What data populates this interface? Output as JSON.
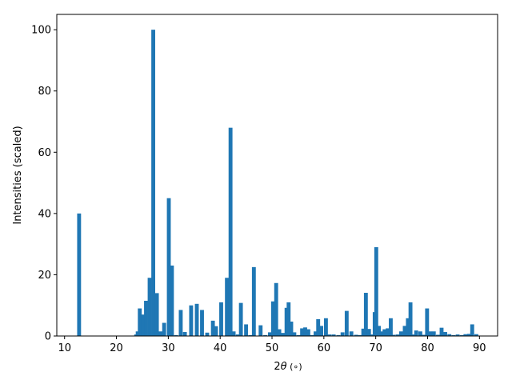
{
  "chart_data": {
    "type": "bar",
    "xlabel_prefix": "2",
    "xlabel_theta": "θ",
    "xlabel_unit": " (∘)",
    "ylabel": "Intensities (scaled)",
    "xlim": [
      8.5,
      93.5
    ],
    "ylim": [
      0,
      105
    ],
    "xticks": [
      10,
      20,
      30,
      40,
      50,
      60,
      70,
      80,
      90
    ],
    "yticks": [
      0,
      20,
      40,
      60,
      80,
      100
    ],
    "grid": false,
    "bar_color": "#1f77b4",
    "bar_width": 0.75,
    "x": [
      12.8,
      23.8,
      24.1,
      24.5,
      25.1,
      25.7,
      26.4,
      27.1,
      27.8,
      28.5,
      29.2,
      30.1,
      30.7,
      31.5,
      32.4,
      33.2,
      34.4,
      35.5,
      36.5,
      37.5,
      38.6,
      39.2,
      40.2,
      41.3,
      42.0,
      42.6,
      43.4,
      44.0,
      45.0,
      45.8,
      46.5,
      47.8,
      48.7,
      49.6,
      50.2,
      50.8,
      51.4,
      52.1,
      52.8,
      53.2,
      53.7,
      54.3,
      55.1,
      55.8,
      56.4,
      57.0,
      57.7,
      58.4,
      58.9,
      59.5,
      60.4,
      61.1,
      61.9,
      62.8,
      63.6,
      64.4,
      65.3,
      66.2,
      66.9,
      67.6,
      68.1,
      68.7,
      69.3,
      69.8,
      70.1,
      70.6,
      71.1,
      71.7,
      72.3,
      72.9,
      73.4,
      74.2,
      74.9,
      75.6,
      76.2,
      76.7,
      77.2,
      77.8,
      78.6,
      79.2,
      79.9,
      80.5,
      81.2,
      82.0,
      82.7,
      83.4,
      84.2,
      85.0,
      85.8,
      86.6,
      87.3,
      88.0,
      88.6,
      89.4
    ],
    "values": [
      40,
      0.5,
      1.5,
      9,
      7,
      11.5,
      19,
      100,
      14,
      1.5,
      4.3,
      45,
      23,
      0.3,
      8.5,
      1.3,
      10,
      10.5,
      8.5,
      1.1,
      5,
      3.2,
      11,
      19,
      68,
      1.5,
      0.5,
      10.8,
      3.8,
      0.3,
      22.5,
      3.5,
      0.3,
      1.2,
      11.3,
      17.3,
      2.2,
      1,
      9.2,
      11,
      4.7,
      1.2,
      0.3,
      2.5,
      2.8,
      2.2,
      0.3,
      1.5,
      5.5,
      3.3,
      5.8,
      0.5,
      0.5,
      0.3,
      1.2,
      8.2,
      1.5,
      0.4,
      0.3,
      2.4,
      14.1,
      2.3,
      0.5,
      7.8,
      29,
      3.3,
      1.5,
      2.2,
      2.5,
      5.8,
      0.4,
      0.5,
      1.5,
      3.3,
      5.8,
      11,
      0.5,
      1.8,
      1.5,
      0.4,
      9,
      1.5,
      1.5,
      0.4,
      2.7,
      1.3,
      0.6,
      0.3,
      0.5,
      0.3,
      0.6,
      0.7,
      3.8,
      0.6
    ]
  }
}
